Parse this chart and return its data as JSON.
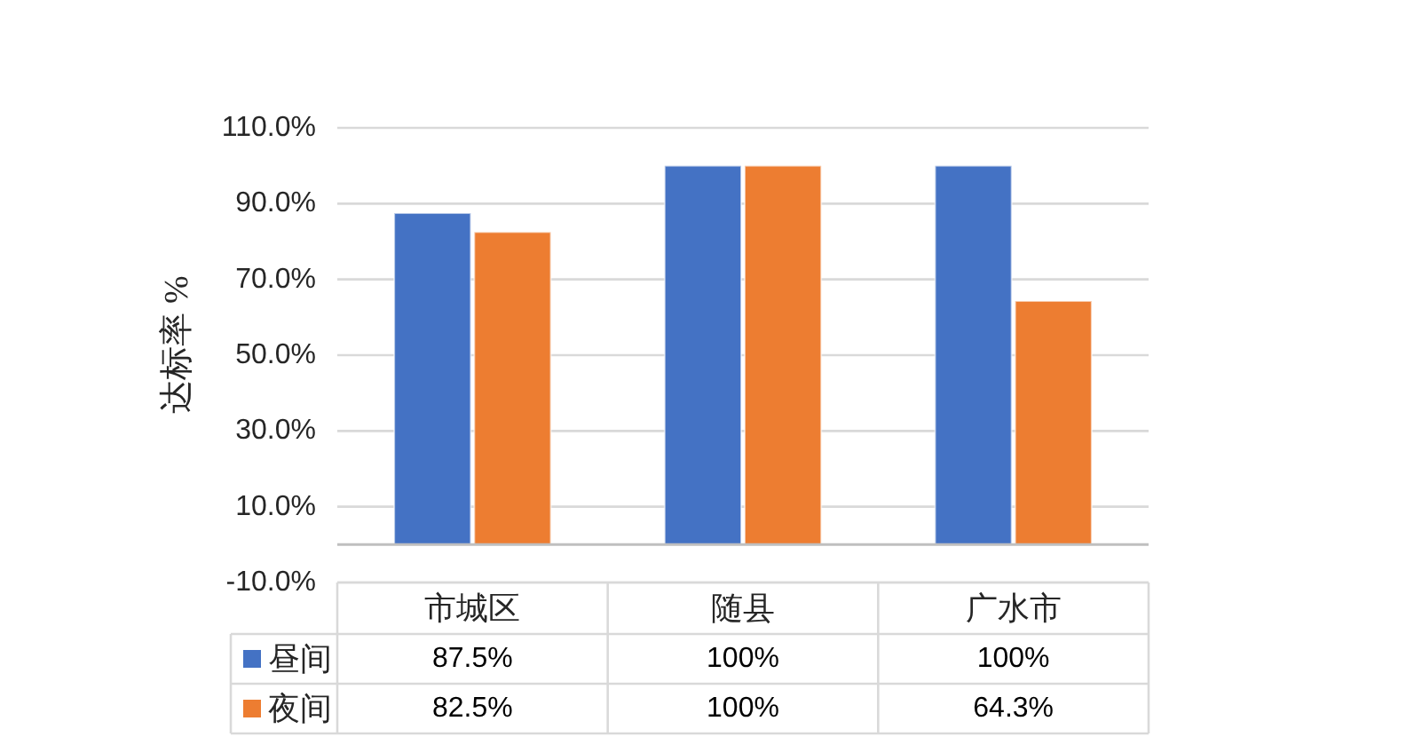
{
  "chart_data": {
    "type": "bar",
    "ylabel": "达标率 %",
    "categories": [
      "市城区",
      "随县",
      "广水市"
    ],
    "series": [
      {
        "name": "昼间",
        "color": "#4472c4",
        "values": [
          87.5,
          100,
          100
        ],
        "value_labels": [
          "87.5%",
          "100%",
          "100%"
        ]
      },
      {
        "name": "夜间",
        "color": "#ed7d31",
        "values": [
          82.5,
          100,
          64.3
        ],
        "value_labels": [
          "82.5%",
          "100%",
          "64.3%"
        ]
      }
    ],
    "ylim": [
      -10,
      110
    ],
    "yticks": [
      {
        "value": -10,
        "label": "-10.0%"
      },
      {
        "value": 10,
        "label": "10.0%"
      },
      {
        "value": 30,
        "label": "30.0%"
      },
      {
        "value": 50,
        "label": "50.0%"
      },
      {
        "value": 70,
        "label": "70.0%"
      },
      {
        "value": 90,
        "label": "90.0%"
      },
      {
        "value": 110,
        "label": "110.0%"
      }
    ],
    "grid": "y",
    "legend": "bottom left"
  }
}
